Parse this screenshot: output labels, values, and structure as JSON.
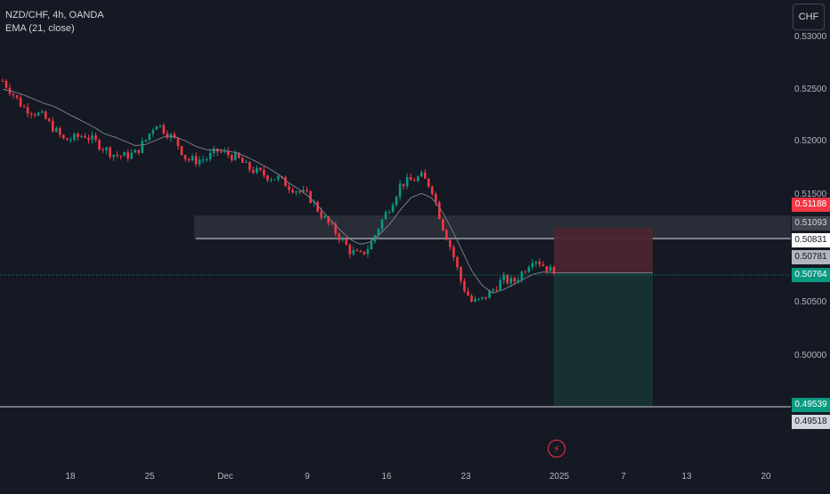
{
  "legend": {
    "symbol": "NZD/CHF, 4h, OANDA",
    "indicator": "EMA (21, close)"
  },
  "currency_button": "CHF",
  "colors": {
    "background": "#151924",
    "up": "#089981",
    "down": "#f23645",
    "ema": "#787b86",
    "zone": "#2a2e39",
    "stop_zone": "#4a2530",
    "target_zone": "#173331",
    "current_price": "#089981"
  },
  "y_axis": {
    "ticks": [
      "0.53000",
      "0.52500",
      "0.52000",
      "0.51500",
      "0.50500",
      "0.50000"
    ]
  },
  "x_axis": {
    "ticks": [
      "18",
      "25",
      "Dec",
      "9",
      "16",
      "23",
      "2025",
      "7",
      "13",
      "20"
    ]
  },
  "price_labels": [
    {
      "value": "0.51188",
      "type": "stop"
    },
    {
      "value": "0.51093",
      "type": "zone"
    },
    {
      "value": "0.50831",
      "type": "line"
    },
    {
      "value": "0.50781",
      "type": "entry"
    },
    {
      "value": "0.50764",
      "type": "current"
    },
    {
      "value": "0.49539",
      "type": "target"
    },
    {
      "value": "0.49518",
      "type": "line"
    }
  ],
  "price_series": [
    0.5258,
    0.5246,
    0.5233,
    0.5229,
    0.5224,
    0.5213,
    0.5202,
    0.5204,
    0.5207,
    0.5201,
    0.5194,
    0.5188,
    0.5187,
    0.519,
    0.5202,
    0.5219,
    0.521,
    0.5201,
    0.5184,
    0.5183,
    0.5185,
    0.5192,
    0.5189,
    0.5185,
    0.5176,
    0.5172,
    0.5168,
    0.5166,
    0.5159,
    0.5154,
    0.5149,
    0.5135,
    0.5122,
    0.5111,
    0.5098,
    0.5093,
    0.5103,
    0.5124,
    0.5141,
    0.5161,
    0.5164,
    0.5168,
    0.5158,
    0.5124,
    0.5098,
    0.5066,
    0.5049,
    0.5052,
    0.5061,
    0.5071,
    0.5068,
    0.5079,
    0.5092,
    0.5084,
    0.5077
  ],
  "ema_series": [
    0.525,
    0.5248,
    0.5245,
    0.5241,
    0.5237,
    0.5234,
    0.5229,
    0.5224,
    0.5219,
    0.5214,
    0.5208,
    0.5205,
    0.5201,
    0.5197,
    0.5198,
    0.5202,
    0.5206,
    0.5205,
    0.5201,
    0.5196,
    0.5193,
    0.5193,
    0.5192,
    0.519,
    0.5186,
    0.5181,
    0.5176,
    0.517,
    0.5162,
    0.5156,
    0.5149,
    0.5139,
    0.5128,
    0.5118,
    0.5109,
    0.5104,
    0.5106,
    0.5114,
    0.5124,
    0.5137,
    0.5148,
    0.5152,
    0.5148,
    0.5136,
    0.5118,
    0.5098,
    0.5078,
    0.5065,
    0.5058,
    0.5061,
    0.5066,
    0.5071,
    0.5076,
    0.5078,
    0.5077
  ]
}
